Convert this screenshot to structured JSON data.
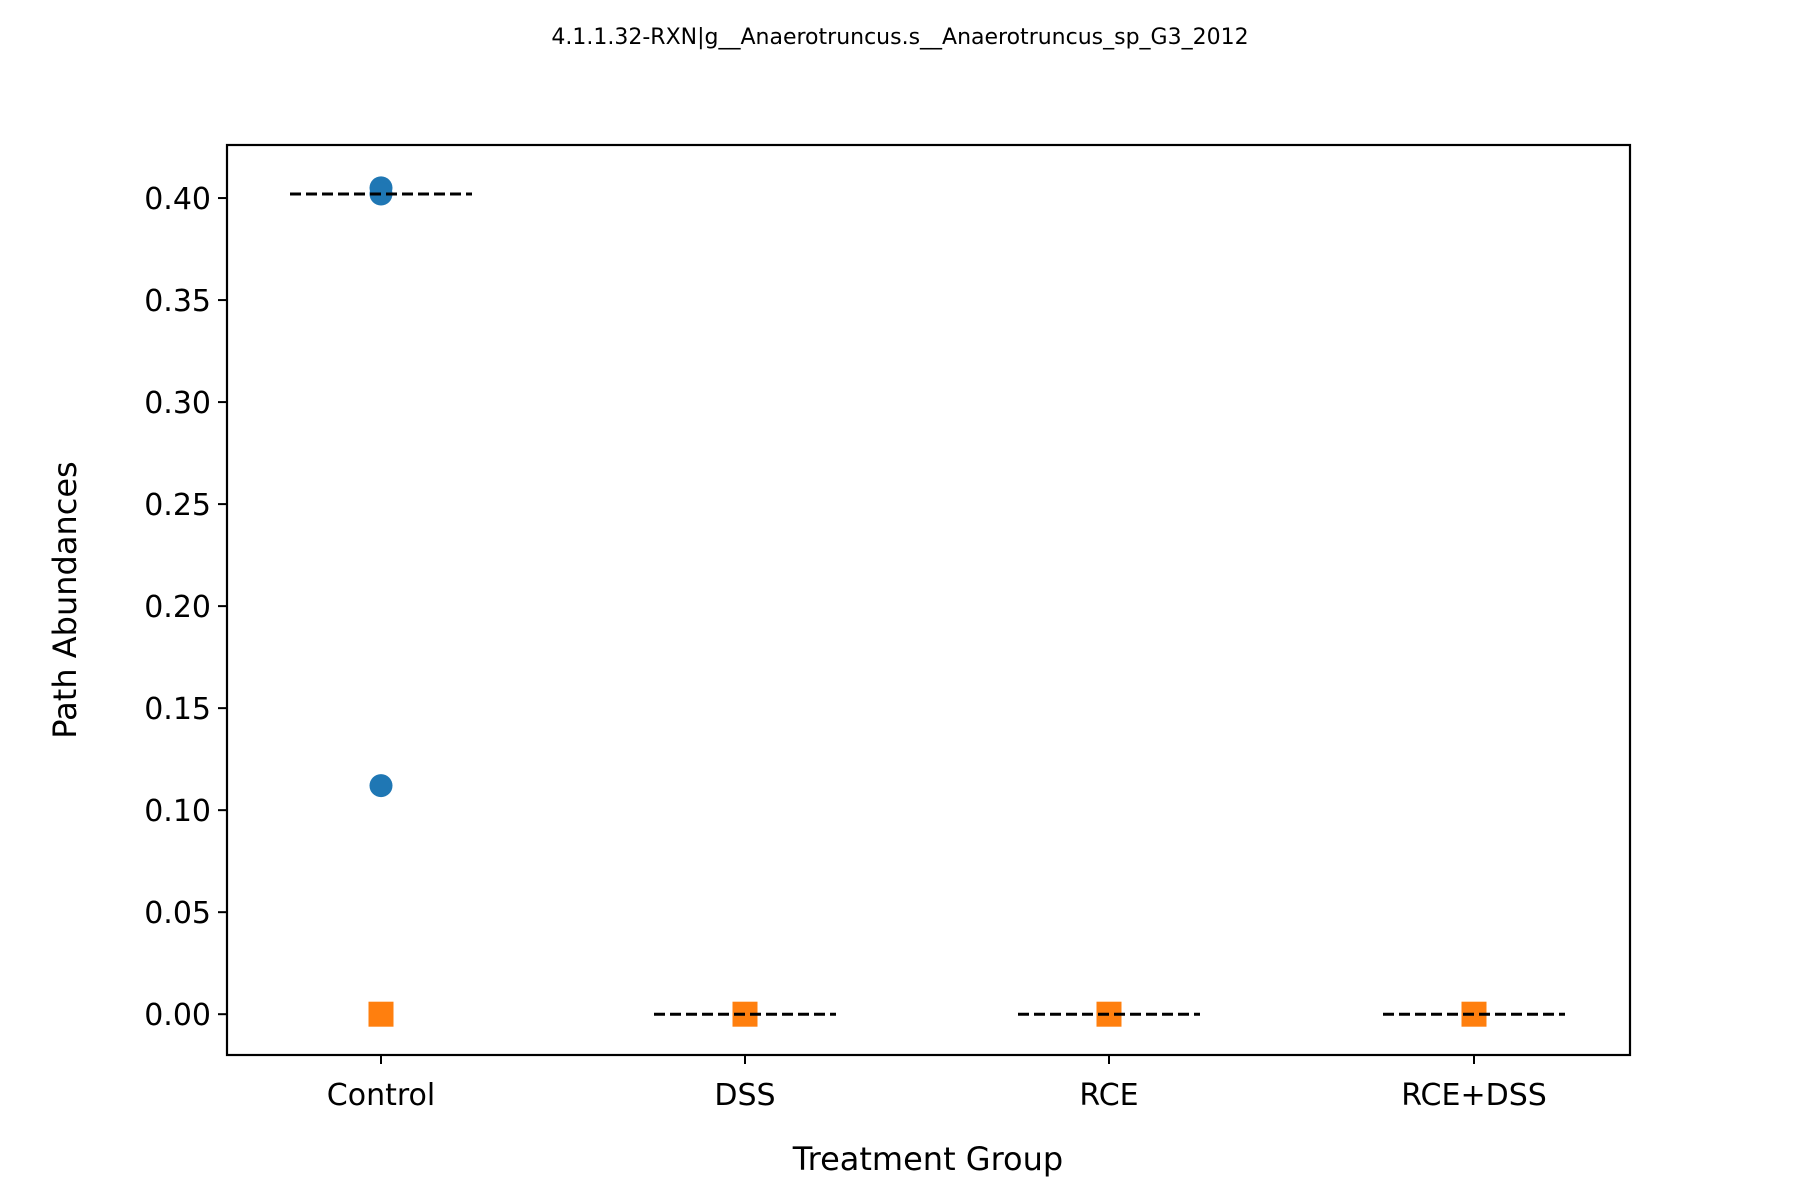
{
  "chart_data": {
    "type": "scatter",
    "title": "4.1.1.32-RXN|g__Anaerotruncus.s__Anaerotruncus_sp_G3_2012",
    "xlabel": "Treatment Group",
    "ylabel": "Path Abundances",
    "categories": [
      "Control",
      "DSS",
      "RCE",
      "RCE+DSS"
    ],
    "ylim": [
      -0.02,
      0.426
    ],
    "yticks": [
      "0.00",
      "0.05",
      "0.10",
      "0.15",
      "0.20",
      "0.25",
      "0.30",
      "0.35",
      "0.40"
    ],
    "grid": false,
    "colors": {
      "circle_series": "#1f77b4",
      "square_series": "#ff7f0e",
      "mean_line": "#000000"
    },
    "series": [
      {
        "marker": "circle",
        "color": "#1f77b4",
        "points": [
          {
            "category": "Control",
            "y": 0.405
          },
          {
            "category": "Control",
            "y": 0.402
          },
          {
            "category": "Control",
            "y": 0.112
          }
        ]
      },
      {
        "marker": "square",
        "color": "#ff7f0e",
        "points": [
          {
            "category": "Control",
            "y": 0.0
          },
          {
            "category": "DSS",
            "y": 0.0
          },
          {
            "category": "RCE",
            "y": 0.0
          },
          {
            "category": "RCE+DSS",
            "y": 0.0
          }
        ]
      }
    ],
    "mean_lines": [
      {
        "category": "Control",
        "y": 0.402
      },
      {
        "category": "DSS",
        "y": 0.0
      },
      {
        "category": "RCE",
        "y": 0.0
      },
      {
        "category": "RCE+DSS",
        "y": 0.0
      }
    ]
  }
}
